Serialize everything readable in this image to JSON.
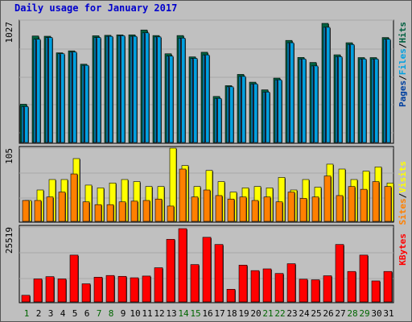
{
  "title": "Daily usage for January 2017",
  "colors": {
    "hits": "#006040",
    "files": "#00a0e0",
    "pages": "#0040a0",
    "visits": "#ffff00",
    "sites": "#ff8000",
    "kbytes": "#ff0000",
    "weekday": "#000000",
    "weekend": "#006600"
  },
  "chart_data": [
    {
      "type": "bar",
      "panel": "top",
      "ymax_label": "1027",
      "series_labels": [
        "Pages",
        "/",
        "Files",
        "/",
        "Hits"
      ],
      "categories": [
        "1",
        "2",
        "3",
        "4",
        "5",
        "6",
        "7",
        "8",
        "9",
        "10",
        "11",
        "12",
        "13",
        "14",
        "15",
        "16",
        "17",
        "18",
        "19",
        "20",
        "21",
        "22",
        "23",
        "24",
        "25",
        "26",
        "27",
        "28",
        "29",
        "30",
        "31"
      ],
      "series": [
        {
          "name": "Hits",
          "values": [
            330,
            918,
            916,
            773,
            790,
            675,
            920,
            924,
            928,
            928,
            970,
            922,
            765,
            922,
            738,
            778,
            397,
            490,
            587,
            520,
            454,
            555,
            880,
            733,
            690,
            1027,
            756,
            860,
            732,
            732,
            905
          ]
        },
        {
          "name": "Files",
          "values": [
            310,
            890,
            905,
            765,
            780,
            665,
            905,
            915,
            920,
            915,
            945,
            910,
            745,
            900,
            725,
            755,
            380,
            480,
            570,
            505,
            435,
            540,
            860,
            720,
            660,
            993,
            740,
            845,
            720,
            720,
            890
          ]
        },
        {
          "name": "Pages",
          "values": [
            310,
            890,
            905,
            765,
            780,
            665,
            905,
            915,
            920,
            915,
            945,
            910,
            745,
            900,
            725,
            755,
            380,
            480,
            570,
            505,
            435,
            540,
            860,
            720,
            660,
            993,
            740,
            845,
            720,
            720,
            890
          ]
        }
      ]
    },
    {
      "type": "bar",
      "panel": "middle",
      "ymax_label": "105",
      "series_labels": [
        "Sites",
        "/",
        "Visits"
      ],
      "categories": [
        "1",
        "2",
        "3",
        "4",
        "5",
        "6",
        "7",
        "8",
        "9",
        "10",
        "11",
        "12",
        "13",
        "14",
        "15",
        "16",
        "17",
        "18",
        "19",
        "20",
        "21",
        "22",
        "23",
        "24",
        "25",
        "26",
        "27",
        "28",
        "29",
        "30",
        "31"
      ],
      "series": [
        {
          "name": "Visits",
          "values": [
            30,
            45,
            60,
            60,
            90,
            52,
            48,
            55,
            60,
            57,
            50,
            50,
            105,
            80,
            50,
            73,
            57,
            42,
            48,
            50,
            48,
            63,
            45,
            60,
            49,
            82,
            75,
            60,
            72,
            78,
            55
          ]
        },
        {
          "name": "Sites",
          "values": [
            30,
            30,
            35,
            42,
            68,
            28,
            24,
            24,
            28,
            29,
            30,
            32,
            22,
            75,
            35,
            45,
            37,
            32,
            35,
            30,
            35,
            28,
            42,
            33,
            35,
            65,
            37,
            50,
            46,
            57,
            50
          ]
        }
      ]
    },
    {
      "type": "bar",
      "panel": "bottom",
      "ymax_label": "25519",
      "series_labels": [
        "KBytes"
      ],
      "categories": [
        "1",
        "2",
        "3",
        "4",
        "5",
        "6",
        "7",
        "8",
        "9",
        "10",
        "11",
        "12",
        "13",
        "14",
        "15",
        "16",
        "17",
        "18",
        "19",
        "20",
        "21",
        "22",
        "23",
        "24",
        "25",
        "26",
        "27",
        "28",
        "29",
        "30",
        "31"
      ],
      "series": [
        {
          "name": "KBytes",
          "values": [
            2300,
            8000,
            8800,
            8000,
            16300,
            6300,
            8600,
            9200,
            8900,
            8400,
            9000,
            11900,
            21800,
            25519,
            13000,
            22500,
            20000,
            4400,
            12800,
            10900,
            11500,
            9900,
            13300,
            7900,
            7700,
            9100,
            20000,
            10600,
            16300,
            7300,
            10600
          ]
        }
      ]
    }
  ]
}
